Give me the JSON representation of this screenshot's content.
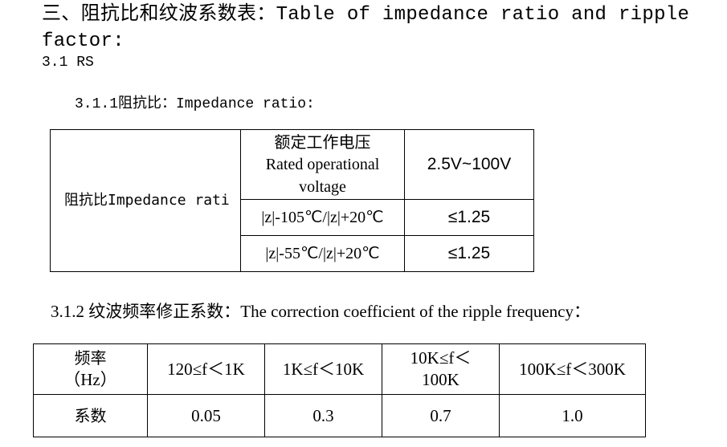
{
  "heading": "三、阻抗比和纹波系数表：Table of impedance ratio and ripple factor:",
  "section": "3.1 RS",
  "impedance": {
    "subtitle": "3.1.1阻抗比：Impedance ratio:",
    "row_label": "阻抗比Impedance rati",
    "voltage_label_cn": "额定工作电压",
    "voltage_label_en1": "Rated operational",
    "voltage_label_en2": "voltage",
    "voltage_value": "2.5V~100V",
    "rows": [
      {
        "condition": "|z|-105℃/|z|+20℃",
        "value": "≤1.25"
      },
      {
        "condition": "|z|-55℃/|z|+20℃",
        "value": "≤1.25"
      }
    ]
  },
  "ripple": {
    "subtitle": "3.1.2 纹波频率修正系数：The correction coefficient of the ripple frequency：",
    "freq_label": "频率",
    "freq_unit": "（Hz）",
    "coef_label": "系数",
    "ranges": [
      {
        "line1": "120≤f＜1K",
        "line2": "",
        "value": "0.05"
      },
      {
        "line1": "1K≤f＜10K",
        "line2": "",
        "value": "0.3"
      },
      {
        "line1": "10K≤f＜",
        "line2": "100K",
        "value": "0.7"
      },
      {
        "line1": "100K≤f＜300K",
        "line2": "",
        "value": "1.0"
      }
    ]
  }
}
